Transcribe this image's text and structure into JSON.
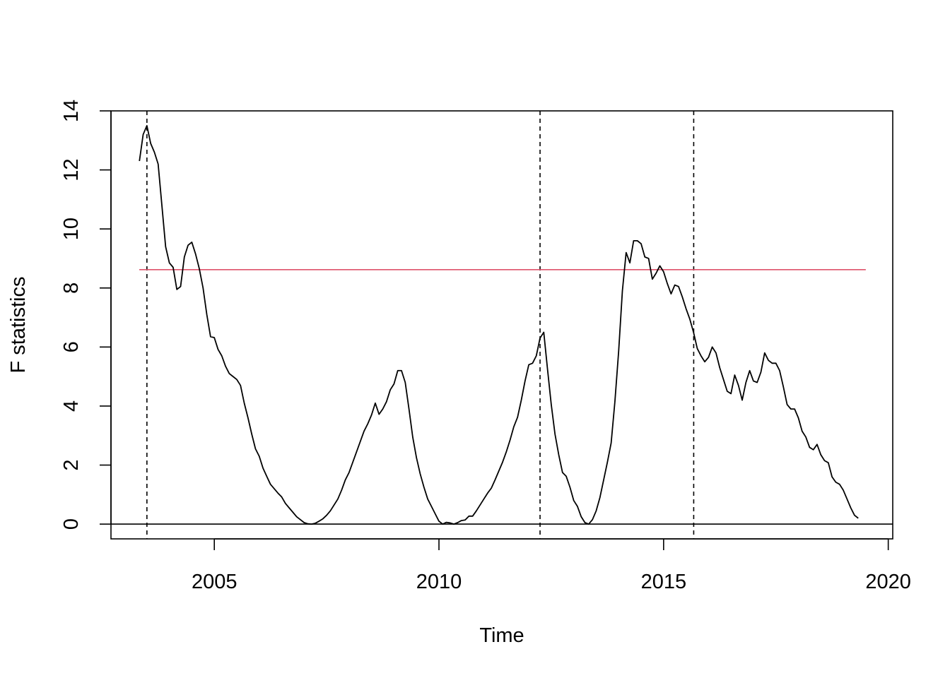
{
  "chart_data": {
    "type": "line",
    "title": "",
    "xlabel": "Time",
    "ylabel": "F statistics",
    "xlim": [
      2002.7,
      2020.1
    ],
    "ylim": [
      -0.5,
      14.0
    ],
    "x_ticks": [
      2005,
      2010,
      2015,
      2020
    ],
    "x_tick_labels": [
      "2005",
      "2010",
      "2015",
      "2020"
    ],
    "y_ticks": [
      0,
      2,
      4,
      6,
      8,
      10,
      12,
      14
    ],
    "y_tick_labels": [
      "0",
      "2",
      "4",
      "6",
      "8",
      10,
      "12",
      "14"
    ],
    "grid": false,
    "colors": {
      "series": "#000000",
      "critical_line": "#DF536B",
      "breakpoints": "#000000"
    },
    "zero_line": 0,
    "critical_value": 8.62,
    "critical_range": [
      2003.33,
      2019.5
    ],
    "breakpoints": [
      2003.5,
      2012.25,
      2015.67
    ],
    "series": [
      {
        "values_x_start": 2003.333,
        "values_x_step": 0.08333,
        "values": [
          12.3,
          13.2,
          13.5,
          12.9,
          12.6,
          12.2,
          10.8,
          9.4,
          8.85,
          8.7,
          7.95,
          8.05,
          9.05,
          9.45,
          9.55,
          9.15,
          8.65,
          8.0,
          7.1,
          6.35,
          6.32,
          5.92,
          5.7,
          5.35,
          5.1,
          5.0,
          4.9,
          4.7,
          4.1,
          3.6,
          3.05,
          2.55,
          2.3,
          1.9,
          1.62,
          1.35,
          1.2,
          1.05,
          0.92,
          0.7,
          0.55,
          0.4,
          0.25,
          0.15,
          0.05,
          0.01,
          0.0,
          0.03,
          0.1,
          0.18,
          0.3,
          0.45,
          0.65,
          0.85,
          1.15,
          1.5,
          1.75,
          2.1,
          2.45,
          2.8,
          3.15,
          3.4,
          3.7,
          4.1,
          3.72,
          3.9,
          4.15,
          4.55,
          4.75,
          5.2,
          5.2,
          4.8,
          3.9,
          2.95,
          2.25,
          1.7,
          1.25,
          0.85,
          0.6,
          0.35,
          0.1,
          0.0,
          0.06,
          0.04,
          0.0,
          0.05,
          0.12,
          0.14,
          0.27,
          0.27,
          0.45,
          0.65,
          0.85,
          1.05,
          1.22,
          1.5,
          1.8,
          2.1,
          2.45,
          2.85,
          3.3,
          3.62,
          4.2,
          4.85,
          5.4,
          5.45,
          5.7,
          6.3,
          6.5,
          5.25,
          4.05,
          3.05,
          2.35,
          1.75,
          1.62,
          1.25,
          0.8,
          0.6,
          0.25,
          0.05,
          0.0,
          0.15,
          0.45,
          0.9,
          1.5,
          2.1,
          2.75,
          4.15,
          5.85,
          7.9,
          9.2,
          8.85,
          9.6,
          9.6,
          9.5,
          9.05,
          9.0,
          8.3,
          8.5,
          8.75,
          8.55,
          8.15,
          7.8,
          8.1,
          8.05,
          7.7,
          7.3,
          6.95,
          6.5,
          5.95,
          5.7,
          5.5,
          5.65,
          6.0,
          5.8,
          5.3,
          4.9,
          4.5,
          4.42,
          5.05,
          4.7,
          4.2,
          4.8,
          5.2,
          4.85,
          4.8,
          5.15,
          5.8,
          5.55,
          5.45,
          5.45,
          5.2,
          4.65,
          4.05,
          3.9,
          3.9,
          3.6,
          3.15,
          2.95,
          2.6,
          2.52,
          2.7,
          2.35,
          2.15,
          2.08,
          1.6,
          1.42,
          1.35,
          1.15,
          0.85,
          0.55,
          0.3,
          0.2
        ]
      }
    ]
  }
}
